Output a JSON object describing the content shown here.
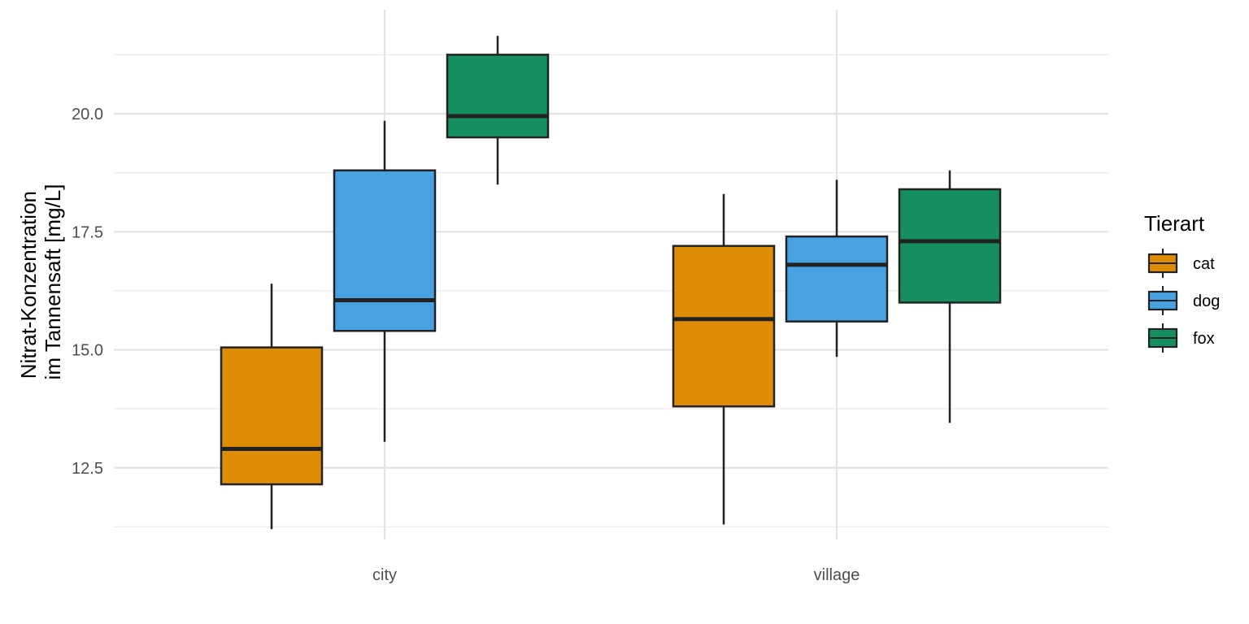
{
  "chart_data": {
    "type": "boxplot",
    "title": "",
    "xlabel": "",
    "ylabel": [
      "Nitrat-Konzentration",
      "im Tannensaft [mg/L]"
    ],
    "ylim": [
      11.0,
      22.2
    ],
    "y_ticks": [
      "12.5",
      "15.0",
      "17.5",
      "20.0"
    ],
    "categories": [
      "city",
      "village"
    ],
    "grid": true,
    "legend": {
      "title": "Tierart",
      "placement": "right"
    },
    "series": [
      {
        "name": "cat",
        "color": "#DE8C06",
        "boxes": [
          {
            "category": "city",
            "whisker_low": 11.2,
            "q1": 12.15,
            "median": 12.9,
            "q3": 15.05,
            "whisker_high": 16.4
          },
          {
            "category": "village",
            "whisker_low": 11.3,
            "q1": 13.8,
            "median": 15.65,
            "q3": 17.2,
            "whisker_high": 18.3
          }
        ]
      },
      {
        "name": "dog",
        "color": "#48A2E2",
        "boxes": [
          {
            "category": "city",
            "whisker_low": 13.05,
            "q1": 15.4,
            "median": 16.05,
            "q3": 18.8,
            "whisker_high": 19.85
          },
          {
            "category": "village",
            "whisker_low": 14.85,
            "q1": 15.6,
            "median": 16.8,
            "q3": 17.4,
            "whisker_high": 18.6
          }
        ]
      },
      {
        "name": "fox",
        "color": "#158F60",
        "boxes": [
          {
            "category": "city",
            "whisker_low": 18.5,
            "q1": 19.5,
            "median": 19.95,
            "q3": 21.25,
            "whisker_high": 21.65
          },
          {
            "category": "village",
            "whisker_low": 13.45,
            "q1": 16.0,
            "median": 17.3,
            "q3": 18.4,
            "whisker_high": 18.8
          }
        ]
      }
    ]
  }
}
